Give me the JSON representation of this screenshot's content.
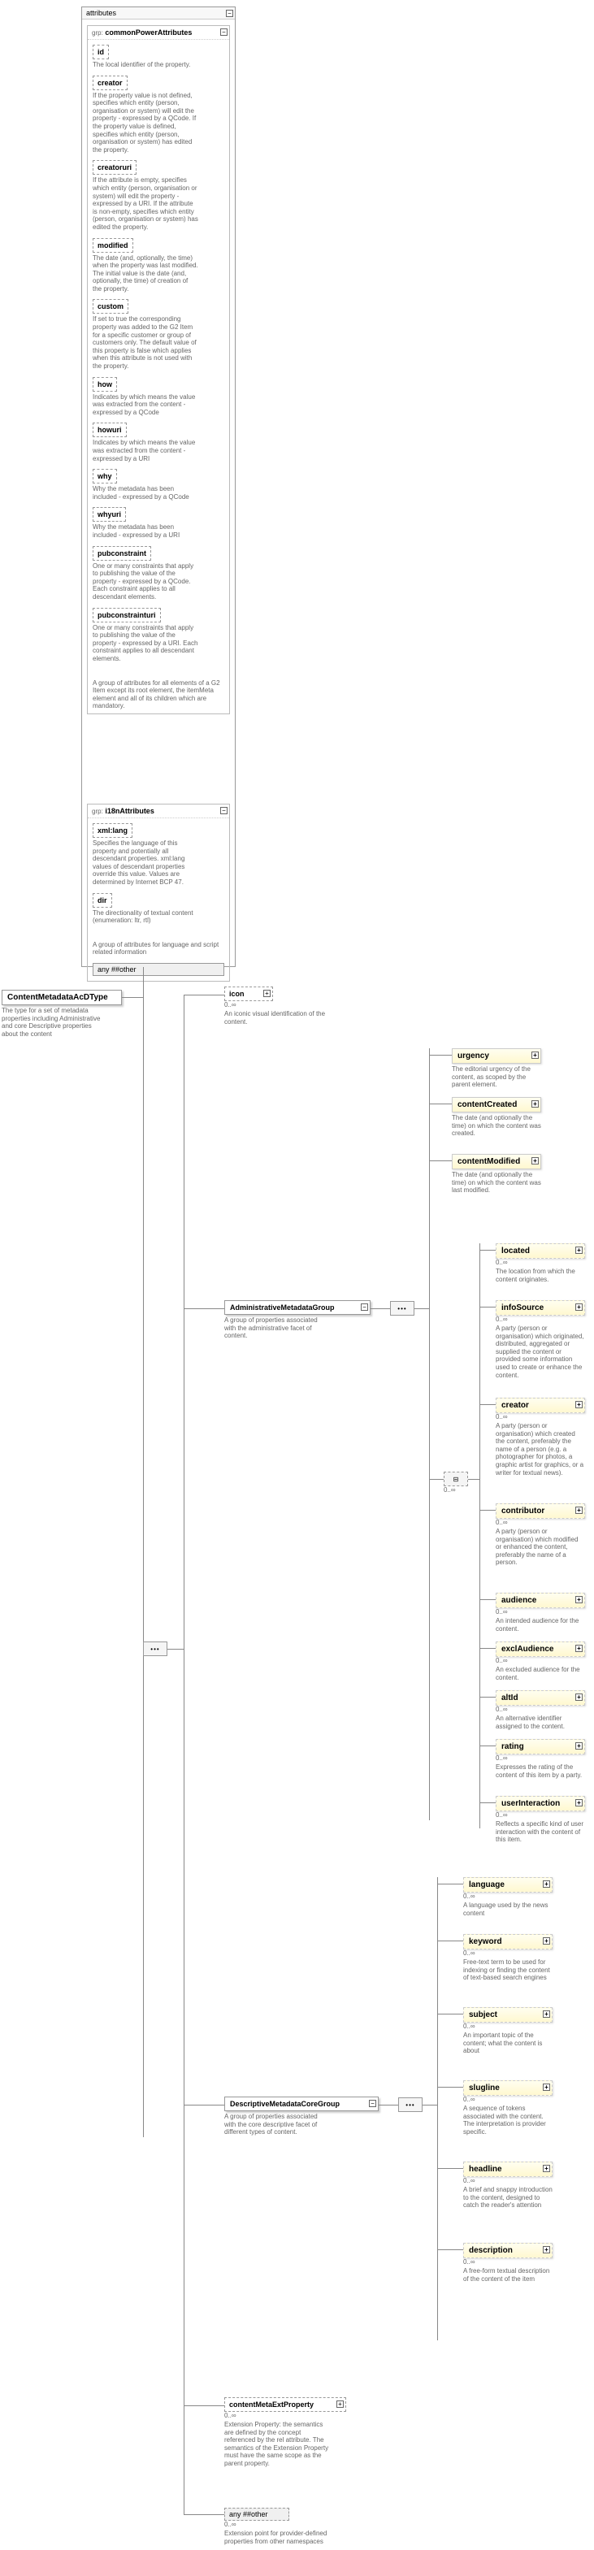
{
  "root": {
    "name": "ContentMetadataAcDType",
    "desc": "The type for a  set of metadata properties including Administrative and core Descriptive properties about the content"
  },
  "attributes": {
    "header": "attributes",
    "commonPower": {
      "grp": "grp:",
      "name": "commonPowerAttributes",
      "footer": "A group of attributes for all elements of a G2 Item except its root element, the itemMeta element and all of its children which are mandatory.",
      "items": [
        {
          "name": "id",
          "desc": "The local identifier of the property."
        },
        {
          "name": "creator",
          "desc": "If the property value is not defined, specifies which entity (person, organisation or system) will edit the property - expressed by a QCode. If the property value is defined, specifies which entity (person, organisation or system) has edited the property."
        },
        {
          "name": "creatoruri",
          "desc": "If the attribute is empty, specifies which entity (person, organisation or system) will edit the property - expressed by a URI. If the attribute is non-empty, specifies which entity (person, organisation or system) has edited the property."
        },
        {
          "name": "modified",
          "desc": "The date (and, optionally, the time) when the property was last modified. The initial value is the date (and, optionally, the time) of creation of the property."
        },
        {
          "name": "custom",
          "desc": "If set to true the corresponding property was added to the G2 Item for a specific customer or group of customers only. The default value of this property is false which applies when this attribute is not used with the property."
        },
        {
          "name": "how",
          "desc": "Indicates by which means the value was extracted from the content - expressed by a QCode"
        },
        {
          "name": "howuri",
          "desc": "Indicates by which means the value was extracted from the content - expressed by a URI"
        },
        {
          "name": "why",
          "desc": "Why the metadata has been included - expressed by a QCode"
        },
        {
          "name": "whyuri",
          "desc": "Why the metadata has been included - expressed by a URI"
        },
        {
          "name": "pubconstraint",
          "desc": "One or many constraints that apply to publishing the value of the property - expressed by a QCode. Each constraint applies to all descendant elements."
        },
        {
          "name": "pubconstrainturi",
          "desc": "One or many constraints that apply to publishing the value of the property - expressed by a URI. Each constraint applies to all descendant elements."
        }
      ]
    },
    "i18n": {
      "grp": "grp:",
      "name": "i18nAttributes",
      "footer": "A group of attributes for language and script related information",
      "items": [
        {
          "name": "xml:lang",
          "desc": "Specifies the language of this property and potentially all descendant properties. xml:lang values of descendant properties override this value. Values are determined by Internet BCP 47."
        },
        {
          "name": "dir",
          "desc": "The directionality of textual content (enumeration: ltr, rtl)"
        }
      ],
      "any": "any ##other"
    }
  },
  "icon": {
    "name": "icon",
    "card": "0..∞",
    "desc": "An iconic visual identification of the content."
  },
  "admin": {
    "name": "AdministrativeMetadataGroup",
    "desc": "A group of properties associated with the administrative facet of content.",
    "items": [
      {
        "name": "urgency",
        "card": "",
        "desc": "The editorial urgency of the content, as scoped by the parent element."
      },
      {
        "name": "contentCreated",
        "card": "",
        "desc": "The date (and optionally the time) on which the content was created."
      },
      {
        "name": "contentModified",
        "card": "",
        "desc": "The date (and optionally the time) on which the content was last modified."
      },
      {
        "name": "located",
        "card": "0..∞",
        "desc": "The location from which the content originates."
      },
      {
        "name": "infoSource",
        "card": "0..∞",
        "desc": "A party (person or organisation) which originated, distributed, aggregated or supplied the content or provided some information used to create or enhance the content."
      },
      {
        "name": "creator",
        "card": "0..∞",
        "desc": "A party (person or organisation) which created the content, preferably the name of a person (e.g. a photographer for photos, a graphic artist for graphics, or a writer for textual news)."
      },
      {
        "name": "contributor",
        "card": "0..∞",
        "desc": "A party (person or organisation) which modified or enhanced the content, preferably the name of a person."
      },
      {
        "name": "audience",
        "card": "0..∞",
        "desc": "An intended audience for the content."
      },
      {
        "name": "exclAudience",
        "card": "0..∞",
        "desc": "An excluded audience for the content."
      },
      {
        "name": "altId",
        "card": "0..∞",
        "desc": "An alternative identifier assigned to the content."
      },
      {
        "name": "rating",
        "card": "0..∞",
        "desc": "Expresses the rating of the content of this item by a party."
      },
      {
        "name": "userInteraction",
        "card": "0..∞",
        "desc": "Reflects a specific kind of user interaction with the content of this item."
      }
    ]
  },
  "descriptive": {
    "name": "DescriptiveMetadataCoreGroup",
    "desc": "A group of properties associated with the core descriptive facet of different types of content.",
    "items": [
      {
        "name": "language",
        "card": "0..∞",
        "desc": "A language used by the news content"
      },
      {
        "name": "keyword",
        "card": "0..∞",
        "desc": "Free-text term to be used for indexing or finding the content of text-based search engines"
      },
      {
        "name": "subject",
        "card": "0..∞",
        "desc": "An important topic of the content; what the content is about"
      },
      {
        "name": "slugline",
        "card": "0..∞",
        "desc": "A sequence of tokens associated with the content. The interpretation is provider specific."
      },
      {
        "name": "headline",
        "card": "0..∞",
        "desc": "A brief and snappy introduction to the content, designed to catch the reader's attention"
      },
      {
        "name": "description",
        "card": "0..∞",
        "desc": "A free-form textual description of the content of the item"
      }
    ]
  },
  "contentMetaExt": {
    "name": "contentMetaExtProperty",
    "card": "0..∞",
    "desc": "Extension Property: the semantics are defined by the concept referenced by the rel attribute. The semantics of the Extension Property must have the same scope as the parent property."
  },
  "anyOther": {
    "name": "any ##other",
    "card": "0..∞",
    "desc": "Extension point for provider-defined properties from other namespaces"
  }
}
